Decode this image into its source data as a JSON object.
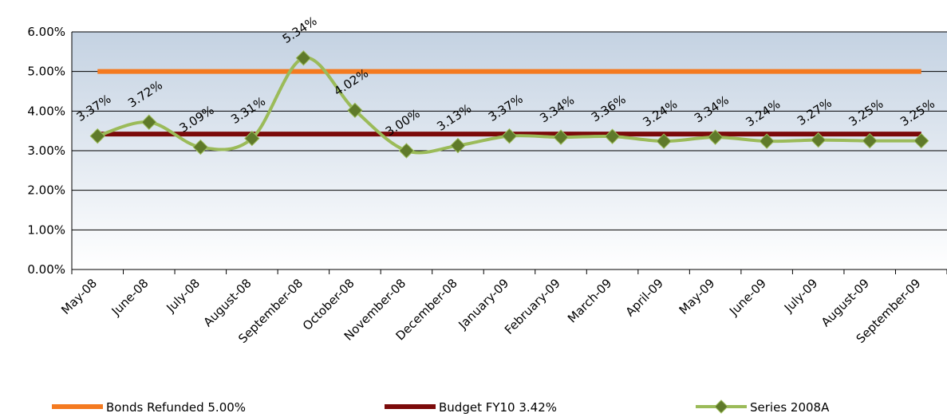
{
  "chart_data": {
    "type": "line",
    "categories": [
      "May-08",
      "June-08",
      "July-08",
      "August-08",
      "September-08",
      "October-08",
      "November-08",
      "December-08",
      "January-09",
      "February-09",
      "March-09",
      "April-09",
      "May-09",
      "June-09",
      "July-09",
      "August-09",
      "September-09"
    ],
    "series": [
      {
        "name": "Bonds Refunded 5.00%",
        "color": "#f47a20",
        "values": [
          5,
          5,
          5,
          5,
          5,
          5,
          5,
          5,
          5,
          5,
          5,
          5,
          5,
          5,
          5,
          5,
          5
        ]
      },
      {
        "name": "Budget FY10 3.42%",
        "color": "#7b0a0a",
        "values": [
          3.42,
          3.42,
          3.42,
          3.42,
          3.42,
          3.42,
          3.42,
          3.42,
          3.42,
          3.42,
          3.42,
          3.42,
          3.42,
          3.42,
          3.42,
          3.42,
          3.42
        ]
      },
      {
        "name": "Series 2008A",
        "color": "#9bbb59",
        "marker_color": "#5f7a2a",
        "smooth": true,
        "values": [
          3.37,
          3.72,
          3.09,
          3.31,
          5.34,
          4.02,
          3.0,
          3.13,
          3.37,
          3.34,
          3.36,
          3.24,
          3.34,
          3.24,
          3.27,
          3.25,
          3.25
        ],
        "value_labels": [
          "3.37%",
          "3.72%",
          "3.09%",
          "3.31%",
          "5.34%",
          "4.02%",
          "3.00%",
          "3.13%",
          "3.37%",
          "3.34%",
          "3.36%",
          "3.24%",
          "3.34%",
          "3.24%",
          "3.27%",
          "3.25%",
          "3.25%"
        ]
      }
    ],
    "ylim": [
      0,
      6
    ],
    "yticks": [
      {
        "value": 0,
        "label": "0.00%"
      },
      {
        "value": 1,
        "label": "1.00%"
      },
      {
        "value": 2,
        "label": "2.00%"
      },
      {
        "value": 3,
        "label": "3.00%"
      },
      {
        "value": 4,
        "label": "4.00%"
      },
      {
        "value": 5,
        "label": "5.00%"
      },
      {
        "value": 6,
        "label": "6.00%"
      }
    ],
    "grid": true,
    "legend": "bottom"
  }
}
